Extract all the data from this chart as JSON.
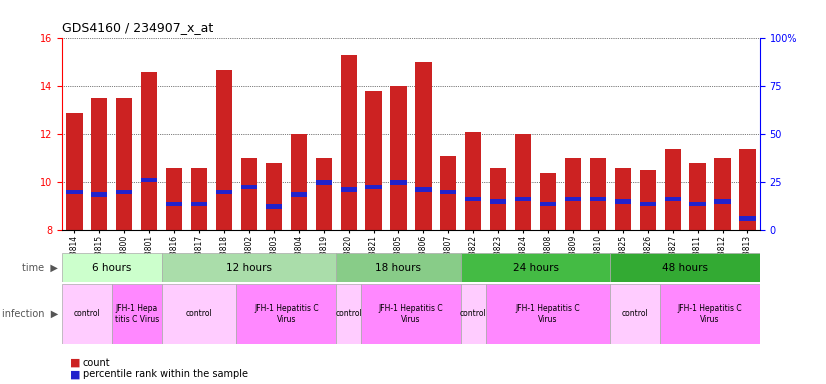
{
  "title": "GDS4160 / 234907_x_at",
  "samples": [
    "GSM523814",
    "GSM523815",
    "GSM523800",
    "GSM523801",
    "GSM523816",
    "GSM523817",
    "GSM523818",
    "GSM523802",
    "GSM523803",
    "GSM523804",
    "GSM523819",
    "GSM523820",
    "GSM523821",
    "GSM523805",
    "GSM523806",
    "GSM523807",
    "GSM523822",
    "GSM523823",
    "GSM523824",
    "GSM523808",
    "GSM523809",
    "GSM523810",
    "GSM523825",
    "GSM523826",
    "GSM523827",
    "GSM523811",
    "GSM523812",
    "GSM523813"
  ],
  "count_values": [
    12.9,
    13.5,
    13.5,
    14.6,
    10.6,
    10.6,
    14.7,
    11.0,
    10.8,
    12.0,
    11.0,
    15.3,
    13.8,
    14.0,
    15.0,
    11.1,
    12.1,
    10.6,
    12.0,
    10.4,
    11.0,
    11.0,
    10.6,
    10.5,
    11.4,
    10.8,
    11.0,
    11.4
  ],
  "percentile_values": [
    9.6,
    9.5,
    9.6,
    10.1,
    9.1,
    9.1,
    9.6,
    9.8,
    9.0,
    9.5,
    10.0,
    9.7,
    9.8,
    10.0,
    9.7,
    9.6,
    9.3,
    9.2,
    9.3,
    9.1,
    9.3,
    9.3,
    9.2,
    9.1,
    9.3,
    9.1,
    9.2,
    8.5
  ],
  "bar_bottom": 8.0,
  "ylim": [
    8.0,
    16.0
  ],
  "yticks_left": [
    8,
    10,
    12,
    14,
    16
  ],
  "yticks_right": [
    0,
    25,
    50,
    75,
    100
  ],
  "time_groups": [
    {
      "label": "6 hours",
      "start": 0,
      "end": 4,
      "color": "#ccffcc"
    },
    {
      "label": "12 hours",
      "start": 4,
      "end": 11,
      "color": "#aaddaa"
    },
    {
      "label": "18 hours",
      "start": 11,
      "end": 16,
      "color": "#88cc88"
    },
    {
      "label": "24 hours",
      "start": 16,
      "end": 22,
      "color": "#44bb44"
    },
    {
      "label": "48 hours",
      "start": 22,
      "end": 28,
      "color": "#33aa33"
    }
  ],
  "infection_groups": [
    {
      "label": "control",
      "start": 0,
      "end": 2,
      "light": true
    },
    {
      "label": "JFH-1 Hepa\ntitis C Virus",
      "start": 2,
      "end": 4,
      "light": false
    },
    {
      "label": "control",
      "start": 4,
      "end": 7,
      "light": true
    },
    {
      "label": "JFH-1 Hepatitis C\nVirus",
      "start": 7,
      "end": 11,
      "light": false
    },
    {
      "label": "control",
      "start": 11,
      "end": 12,
      "light": true
    },
    {
      "label": "JFH-1 Hepatitis C\nVirus",
      "start": 12,
      "end": 16,
      "light": false
    },
    {
      "label": "control",
      "start": 16,
      "end": 17,
      "light": true
    },
    {
      "label": "JFH-1 Hepatitis C\nVirus",
      "start": 17,
      "end": 22,
      "light": false
    },
    {
      "label": "control",
      "start": 22,
      "end": 24,
      "light": true
    },
    {
      "label": "JFH-1 Hepatitis C\nVirus",
      "start": 24,
      "end": 28,
      "light": false
    }
  ],
  "bar_color": "#cc2222",
  "percentile_bar_color": "#2222cc",
  "bg_color": "#ffffff",
  "plot_bg_color": "#ffffff",
  "inf_color_light": "#ffccff",
  "inf_color_dark": "#ff88ff"
}
